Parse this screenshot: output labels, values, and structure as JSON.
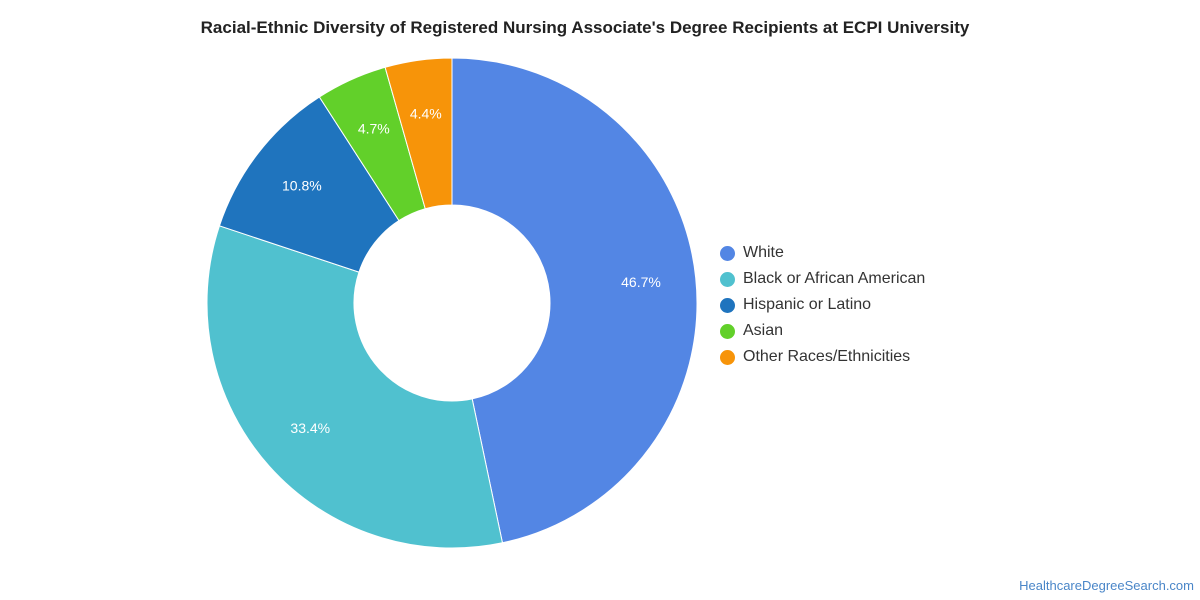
{
  "chart_data": {
    "type": "pie",
    "title": "Racial-Ethnic Diversity of Registered Nursing Associate's Degree Recipients at ECPI University",
    "categories": [
      "White",
      "Black or African American",
      "Hispanic or Latino",
      "Asian",
      "Other Races/Ethnicities"
    ],
    "values": [
      46.7,
      33.4,
      10.8,
      4.7,
      4.4
    ],
    "value_labels": [
      "46.7%",
      "33.4%",
      "10.8%",
      "4.7%",
      "4.4%"
    ],
    "colors": [
      "#5386e4",
      "#50c1cf",
      "#1f74be",
      "#62d02a",
      "#f79409"
    ],
    "donut": true,
    "legend_position": "right"
  },
  "watermark": "HealthcareDegreeSearch.com"
}
